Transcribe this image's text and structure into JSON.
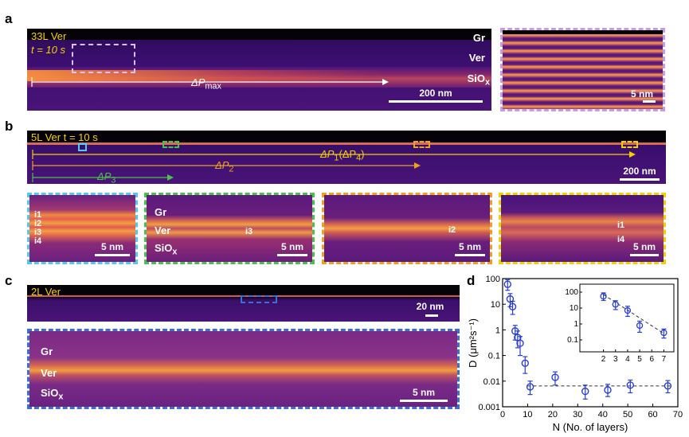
{
  "panel_a": {
    "letter": "a",
    "sample": "33L Ver",
    "time": "t = 10 s",
    "gr": "Gr",
    "ver": "Ver",
    "sio": "SiO",
    "sio_sub": "x",
    "delta_label": "ΔP",
    "delta_sub": "max",
    "scale_main": "200 nm",
    "scale_inset": "5 nm",
    "colors": {
      "frame": "#c79bea"
    }
  },
  "panel_b": {
    "letter": "b",
    "sample": "5L Ver t = 10 s",
    "p1_label": "ΔP",
    "p1_sub": "1",
    "p1_paren": "(ΔP",
    "p1_paren_sub": "4",
    "p1_close": ")",
    "p2_label": "ΔP",
    "p2_sub": "2",
    "p3_label": "ΔP",
    "p3_sub": "3",
    "scale_main": "200 nm",
    "inset1": {
      "i1": "i1",
      "i2": "i2",
      "i3": "i3",
      "i4": "i4",
      "scale": "5 nm"
    },
    "inset2": {
      "gr": "Gr",
      "ver": "Ver",
      "sio": "SiO",
      "sio_sub": "x",
      "mark": "i3",
      "scale": "5 nm"
    },
    "inset3": {
      "mark": "i2",
      "scale": "5 nm"
    },
    "inset4": {
      "i1": "i1",
      "i4": "i4",
      "scale": "5 nm"
    },
    "colors": {
      "cyan": "#56c8f0",
      "green": "#4cc04c",
      "orange": "#f0a020",
      "yellow": "#f5d000"
    }
  },
  "panel_c": {
    "letter": "c",
    "sample": "2L Ver",
    "scale_top": "20 nm",
    "gr": "Gr",
    "ver": "Ver",
    "sio": "SiO",
    "sio_sub": "x",
    "scale_bottom": "5 nm",
    "colors": {
      "frame": "#3a6fd8"
    }
  },
  "panel_d": {
    "letter": "d"
  },
  "chart_data": {
    "type": "scatter",
    "title": "",
    "xlabel": "N (No. of layers)",
    "ylabel": "D (μm²s⁻¹)",
    "xlim": [
      0,
      70
    ],
    "ylim": [
      0.001,
      100
    ],
    "yscale": "log",
    "x_ticks": [
      "0",
      "10",
      "20",
      "30",
      "40",
      "50",
      "60",
      "70"
    ],
    "y_ticks": [
      "0.001",
      "0.01",
      "0.1",
      "1",
      "10",
      "100"
    ],
    "series": [
      {
        "name": "main",
        "x": [
          2,
          3,
          4,
          5,
          6,
          7,
          9,
          11,
          21,
          33,
          42,
          51,
          66
        ],
        "y": [
          60,
          16,
          8,
          0.9,
          0.5,
          0.3,
          0.05,
          0.006,
          0.014,
          0.004,
          0.0045,
          0.007,
          0.0065
        ],
        "y_err_low": [
          25,
          8,
          4,
          0.5,
          0.3,
          0.2,
          0.03,
          0.003,
          0.007,
          0.002,
          0.002,
          0.0035,
          0.003
        ],
        "y_err_high": [
          30,
          10,
          5,
          0.6,
          0.4,
          0.25,
          0.04,
          0.004,
          0.009,
          0.003,
          0.003,
          0.004,
          0.004
        ]
      }
    ],
    "fit_lines": [
      {
        "x": [
          10,
          67
        ],
        "y": [
          0.0065,
          0.0065
        ],
        "style": "dashed"
      }
    ],
    "inset": {
      "xlim": [
        1.5,
        7.5
      ],
      "ylim": [
        0.05,
        200
      ],
      "x_ticks": [
        "2",
        "3",
        "4",
        "5",
        "6",
        "7"
      ],
      "y_ticks": [
        "0.1",
        "1",
        "10",
        "100"
      ],
      "x": [
        2,
        3,
        4,
        5,
        7
      ],
      "y": [
        55,
        17,
        7,
        0.8,
        0.28
      ],
      "y_err_low": [
        25,
        9,
        4,
        0.5,
        0.15
      ],
      "y_err_high": [
        35,
        12,
        6,
        0.7,
        0.2
      ],
      "fit": {
        "x": [
          2,
          7
        ],
        "y": [
          70,
          0.25
        ]
      }
    },
    "colors": {
      "marker": "#2a3fd0",
      "fit": "#333333"
    }
  }
}
